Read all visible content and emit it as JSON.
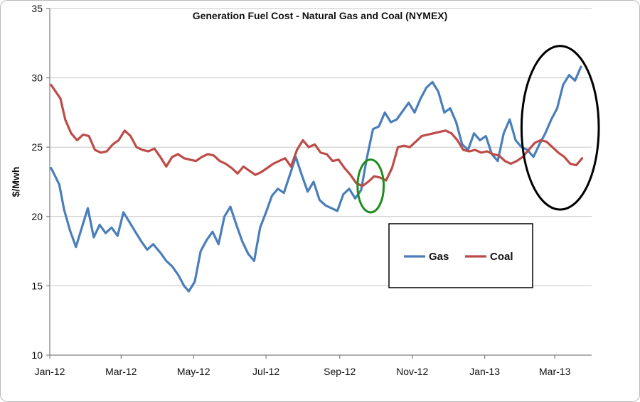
{
  "chart_data": {
    "type": "line",
    "title": "Generation Fuel Cost - Natural Gas and Coal (NYMEX)",
    "ylabel": "$/Mwh",
    "xlabel": "",
    "ylim": [
      10,
      35
    ],
    "yticks": [
      "10",
      "15",
      "20",
      "25",
      "30",
      "35"
    ],
    "xlim": [
      "2012-01-01",
      "2013-04-01"
    ],
    "xticks": [
      {
        "label": "Jan-12",
        "date": "2012-01-01"
      },
      {
        "label": "Mar-12",
        "date": "2012-03-01"
      },
      {
        "label": "May-12",
        "date": "2012-05-01"
      },
      {
        "label": "Jul-12",
        "date": "2012-07-01"
      },
      {
        "label": "Sep-12",
        "date": "2012-09-01"
      },
      {
        "label": "Nov-12",
        "date": "2012-11-01"
      },
      {
        "label": "Jan-13",
        "date": "2013-01-01"
      },
      {
        "label": "Mar-13",
        "date": "2013-03-01"
      }
    ],
    "grid": true,
    "legend_placement": "center-right",
    "series": [
      {
        "name": "Gas",
        "color": "#4a7ebb",
        "points": [
          [
            "2012-01-02",
            23.5
          ],
          [
            "2012-01-05",
            23.0
          ],
          [
            "2012-01-09",
            22.3
          ],
          [
            "2012-01-13",
            20.5
          ],
          [
            "2012-01-18",
            19.0
          ],
          [
            "2012-01-23",
            17.8
          ],
          [
            "2012-01-28",
            19.2
          ],
          [
            "2012-02-02",
            20.6
          ],
          [
            "2012-02-07",
            18.5
          ],
          [
            "2012-02-12",
            19.4
          ],
          [
            "2012-02-17",
            18.8
          ],
          [
            "2012-02-22",
            19.2
          ],
          [
            "2012-02-27",
            18.6
          ],
          [
            "2012-03-03",
            20.3
          ],
          [
            "2012-03-08",
            19.6
          ],
          [
            "2012-03-13",
            18.9
          ],
          [
            "2012-03-18",
            18.2
          ],
          [
            "2012-03-23",
            17.6
          ],
          [
            "2012-03-28",
            18.0
          ],
          [
            "2012-04-03",
            17.4
          ],
          [
            "2012-04-08",
            16.8
          ],
          [
            "2012-04-13",
            16.4
          ],
          [
            "2012-04-18",
            15.8
          ],
          [
            "2012-04-23",
            15.0
          ],
          [
            "2012-04-27",
            14.6
          ],
          [
            "2012-05-02",
            15.3
          ],
          [
            "2012-05-07",
            17.5
          ],
          [
            "2012-05-12",
            18.3
          ],
          [
            "2012-05-17",
            18.9
          ],
          [
            "2012-05-22",
            18.0
          ],
          [
            "2012-05-27",
            20.0
          ],
          [
            "2012-06-01",
            20.7
          ],
          [
            "2012-06-06",
            19.4
          ],
          [
            "2012-06-11",
            18.2
          ],
          [
            "2012-06-16",
            17.3
          ],
          [
            "2012-06-21",
            16.8
          ],
          [
            "2012-06-26",
            19.2
          ],
          [
            "2012-07-01",
            20.3
          ],
          [
            "2012-07-06",
            21.5
          ],
          [
            "2012-07-11",
            22.0
          ],
          [
            "2012-07-16",
            21.7
          ],
          [
            "2012-07-21",
            23.0
          ],
          [
            "2012-07-26",
            24.3
          ],
          [
            "2012-07-31",
            23.0
          ],
          [
            "2012-08-05",
            21.8
          ],
          [
            "2012-08-10",
            22.5
          ],
          [
            "2012-08-15",
            21.2
          ],
          [
            "2012-08-20",
            20.8
          ],
          [
            "2012-08-25",
            20.6
          ],
          [
            "2012-08-30",
            20.4
          ],
          [
            "2012-09-04",
            21.6
          ],
          [
            "2012-09-09",
            22.0
          ],
          [
            "2012-09-14",
            21.3
          ],
          [
            "2012-09-19",
            21.9
          ],
          [
            "2012-09-24",
            24.3
          ],
          [
            "2012-09-29",
            26.3
          ],
          [
            "2012-10-04",
            26.5
          ],
          [
            "2012-10-09",
            27.5
          ],
          [
            "2012-10-14",
            26.8
          ],
          [
            "2012-10-19",
            27.0
          ],
          [
            "2012-10-24",
            27.6
          ],
          [
            "2012-10-29",
            28.2
          ],
          [
            "2012-11-03",
            27.5
          ],
          [
            "2012-11-08",
            28.5
          ],
          [
            "2012-11-13",
            29.3
          ],
          [
            "2012-11-18",
            29.7
          ],
          [
            "2012-11-23",
            29.0
          ],
          [
            "2012-11-28",
            27.5
          ],
          [
            "2012-12-03",
            27.8
          ],
          [
            "2012-12-08",
            26.8
          ],
          [
            "2012-12-13",
            25.2
          ],
          [
            "2012-12-18",
            24.8
          ],
          [
            "2012-12-23",
            26.0
          ],
          [
            "2012-12-28",
            25.5
          ],
          [
            "2013-01-02",
            25.8
          ],
          [
            "2013-01-07",
            24.5
          ],
          [
            "2013-01-12",
            24.0
          ],
          [
            "2013-01-17",
            26.0
          ],
          [
            "2013-01-22",
            27.0
          ],
          [
            "2013-01-27",
            25.5
          ],
          [
            "2013-02-01",
            25.0
          ],
          [
            "2013-02-06",
            24.8
          ],
          [
            "2013-02-11",
            24.3
          ],
          [
            "2013-02-16",
            25.2
          ],
          [
            "2013-02-21",
            26.0
          ],
          [
            "2013-02-26",
            27.0
          ],
          [
            "2013-03-03",
            27.8
          ],
          [
            "2013-03-08",
            29.5
          ],
          [
            "2013-03-13",
            30.2
          ],
          [
            "2013-03-18",
            29.8
          ],
          [
            "2013-03-23",
            30.8
          ]
        ]
      },
      {
        "name": "Coal",
        "color": "#be4b48",
        "points": [
          [
            "2012-01-02",
            29.5
          ],
          [
            "2012-01-06",
            29.0
          ],
          [
            "2012-01-10",
            28.5
          ],
          [
            "2012-01-14",
            27.0
          ],
          [
            "2012-01-19",
            26.0
          ],
          [
            "2012-01-24",
            25.5
          ],
          [
            "2012-01-29",
            25.9
          ],
          [
            "2012-02-03",
            25.8
          ],
          [
            "2012-02-08",
            24.8
          ],
          [
            "2012-02-13",
            24.6
          ],
          [
            "2012-02-18",
            24.7
          ],
          [
            "2012-02-23",
            25.2
          ],
          [
            "2012-02-28",
            25.5
          ],
          [
            "2012-03-04",
            26.2
          ],
          [
            "2012-03-09",
            25.8
          ],
          [
            "2012-03-14",
            25.0
          ],
          [
            "2012-03-19",
            24.8
          ],
          [
            "2012-03-24",
            24.7
          ],
          [
            "2012-03-29",
            24.9
          ],
          [
            "2012-04-03",
            24.3
          ],
          [
            "2012-04-08",
            23.6
          ],
          [
            "2012-04-13",
            24.3
          ],
          [
            "2012-04-18",
            24.5
          ],
          [
            "2012-04-23",
            24.2
          ],
          [
            "2012-04-28",
            24.1
          ],
          [
            "2012-05-03",
            24.0
          ],
          [
            "2012-05-08",
            24.3
          ],
          [
            "2012-05-13",
            24.5
          ],
          [
            "2012-05-18",
            24.4
          ],
          [
            "2012-05-23",
            24.0
          ],
          [
            "2012-05-28",
            23.8
          ],
          [
            "2012-06-02",
            23.5
          ],
          [
            "2012-06-07",
            23.1
          ],
          [
            "2012-06-12",
            23.6
          ],
          [
            "2012-06-17",
            23.3
          ],
          [
            "2012-06-22",
            23.0
          ],
          [
            "2012-06-27",
            23.2
          ],
          [
            "2012-07-02",
            23.5
          ],
          [
            "2012-07-07",
            23.8
          ],
          [
            "2012-07-12",
            24.0
          ],
          [
            "2012-07-17",
            24.2
          ],
          [
            "2012-07-22",
            23.6
          ],
          [
            "2012-07-27",
            24.8
          ],
          [
            "2012-08-01",
            25.5
          ],
          [
            "2012-08-06",
            25.0
          ],
          [
            "2012-08-11",
            25.2
          ],
          [
            "2012-08-16",
            24.6
          ],
          [
            "2012-08-21",
            24.5
          ],
          [
            "2012-08-26",
            24.0
          ],
          [
            "2012-08-31",
            24.1
          ],
          [
            "2012-09-05",
            23.5
          ],
          [
            "2012-09-10",
            23.0
          ],
          [
            "2012-09-15",
            22.4
          ],
          [
            "2012-09-20",
            22.2
          ],
          [
            "2012-09-25",
            22.5
          ],
          [
            "2012-09-30",
            22.9
          ],
          [
            "2012-10-05",
            22.8
          ],
          [
            "2012-10-10",
            22.6
          ],
          [
            "2012-10-15",
            23.5
          ],
          [
            "2012-10-20",
            25.0
          ],
          [
            "2012-10-25",
            25.1
          ],
          [
            "2012-10-30",
            25.0
          ],
          [
            "2012-11-04",
            25.4
          ],
          [
            "2012-11-09",
            25.8
          ],
          [
            "2012-11-14",
            25.9
          ],
          [
            "2012-11-19",
            26.0
          ],
          [
            "2012-11-24",
            26.1
          ],
          [
            "2012-11-29",
            26.2
          ],
          [
            "2012-12-04",
            26.0
          ],
          [
            "2012-12-09",
            25.5
          ],
          [
            "2012-12-14",
            24.8
          ],
          [
            "2012-12-19",
            24.7
          ],
          [
            "2012-12-24",
            24.8
          ],
          [
            "2012-12-29",
            24.6
          ],
          [
            "2013-01-03",
            24.7
          ],
          [
            "2013-01-08",
            24.5
          ],
          [
            "2013-01-13",
            24.4
          ],
          [
            "2013-01-18",
            24.0
          ],
          [
            "2013-01-23",
            23.8
          ],
          [
            "2013-01-28",
            24.0
          ],
          [
            "2013-02-02",
            24.3
          ],
          [
            "2013-02-07",
            24.8
          ],
          [
            "2013-02-12",
            25.3
          ],
          [
            "2013-02-17",
            25.5
          ],
          [
            "2013-02-22",
            25.4
          ],
          [
            "2013-02-27",
            25.0
          ],
          [
            "2013-03-04",
            24.6
          ],
          [
            "2013-03-09",
            24.3
          ],
          [
            "2013-03-14",
            23.8
          ],
          [
            "2013-03-19",
            23.7
          ],
          [
            "2013-03-24",
            24.2
          ]
        ]
      }
    ],
    "annotations": [
      {
        "shape": "ellipse",
        "color": "#1e8c1e",
        "x": [
          "2012-09-16",
          "2012-10-08"
        ],
        "y": [
          20.3,
          24.1
        ]
      },
      {
        "shape": "ellipse",
        "color": "#000000",
        "x": [
          "2013-02-01",
          "2013-04-07"
        ],
        "y": [
          20.5,
          32.3
        ]
      }
    ]
  }
}
